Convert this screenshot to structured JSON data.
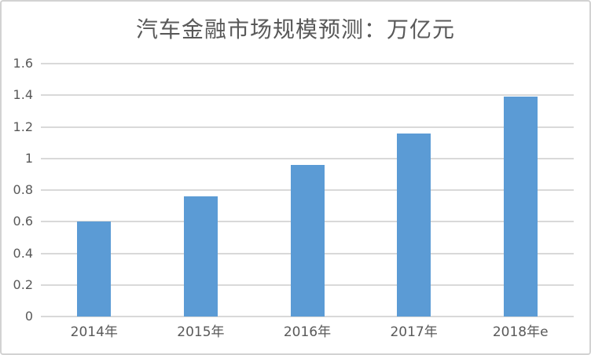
{
  "frame": {
    "background_color": "#ffffff",
    "border_color": "#d2d2d2"
  },
  "chart_data": {
    "type": "bar",
    "title": "汽车金融市场规模预测：万亿元",
    "categories": [
      "2014年",
      "2015年",
      "2016年",
      "2017年",
      "2018年e"
    ],
    "values": [
      0.6,
      0.76,
      0.96,
      1.16,
      1.39
    ],
    "xlabel": "",
    "ylabel": "",
    "ylim": [
      0,
      1.6
    ],
    "ytick_step": 0.2,
    "ytick_labels": [
      "0",
      "0.2",
      "0.4",
      "0.6",
      "0.8",
      "1",
      "1.2",
      "1.4",
      "1.6"
    ],
    "grid": true,
    "legend": "none",
    "bar_color": "#5b9bd5",
    "gridline_color": "#d9d9d9",
    "text_color": "#595959"
  }
}
